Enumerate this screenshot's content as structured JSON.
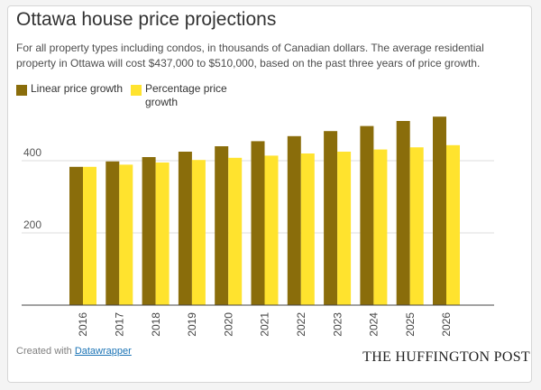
{
  "colors": {
    "linear": "#8a6d0b",
    "percentage": "#ffe32e",
    "grid": "#dddddd",
    "baseline": "#444444"
  },
  "title": "Ottawa house price projections",
  "subtitle": "For all property types including condos, in thousands of Canadian dollars. The average residential property in Ottawa will cost $437,000 to $510,000, based on the past three years of price growth.",
  "legend": {
    "linear": "Linear price growth",
    "percentage": "Percentage price growth"
  },
  "footer": {
    "prefix": "Created with ",
    "link": "Datawrapper"
  },
  "brand": "THE HUFFINGTON POST",
  "chart_data": {
    "type": "bar",
    "title": "Ottawa house price projections",
    "xlabel": "",
    "ylabel": "",
    "ylim": [
      0,
      500
    ],
    "yticks": [
      200,
      400
    ],
    "categories": [
      "2016",
      "2017",
      "2018",
      "2019",
      "2020",
      "2021",
      "2022",
      "2023",
      "2024",
      "2025",
      "2026"
    ],
    "series": [
      {
        "name": "Linear price growth",
        "values": [
          383,
          398,
          410,
          425,
          440,
          454,
          468,
          482,
          496,
          510,
          522
        ]
      },
      {
        "name": "Percentage price growth",
        "values": [
          383,
          389,
          395,
          402,
          408,
          414,
          420,
          425,
          431,
          437,
          443
        ]
      }
    ]
  }
}
